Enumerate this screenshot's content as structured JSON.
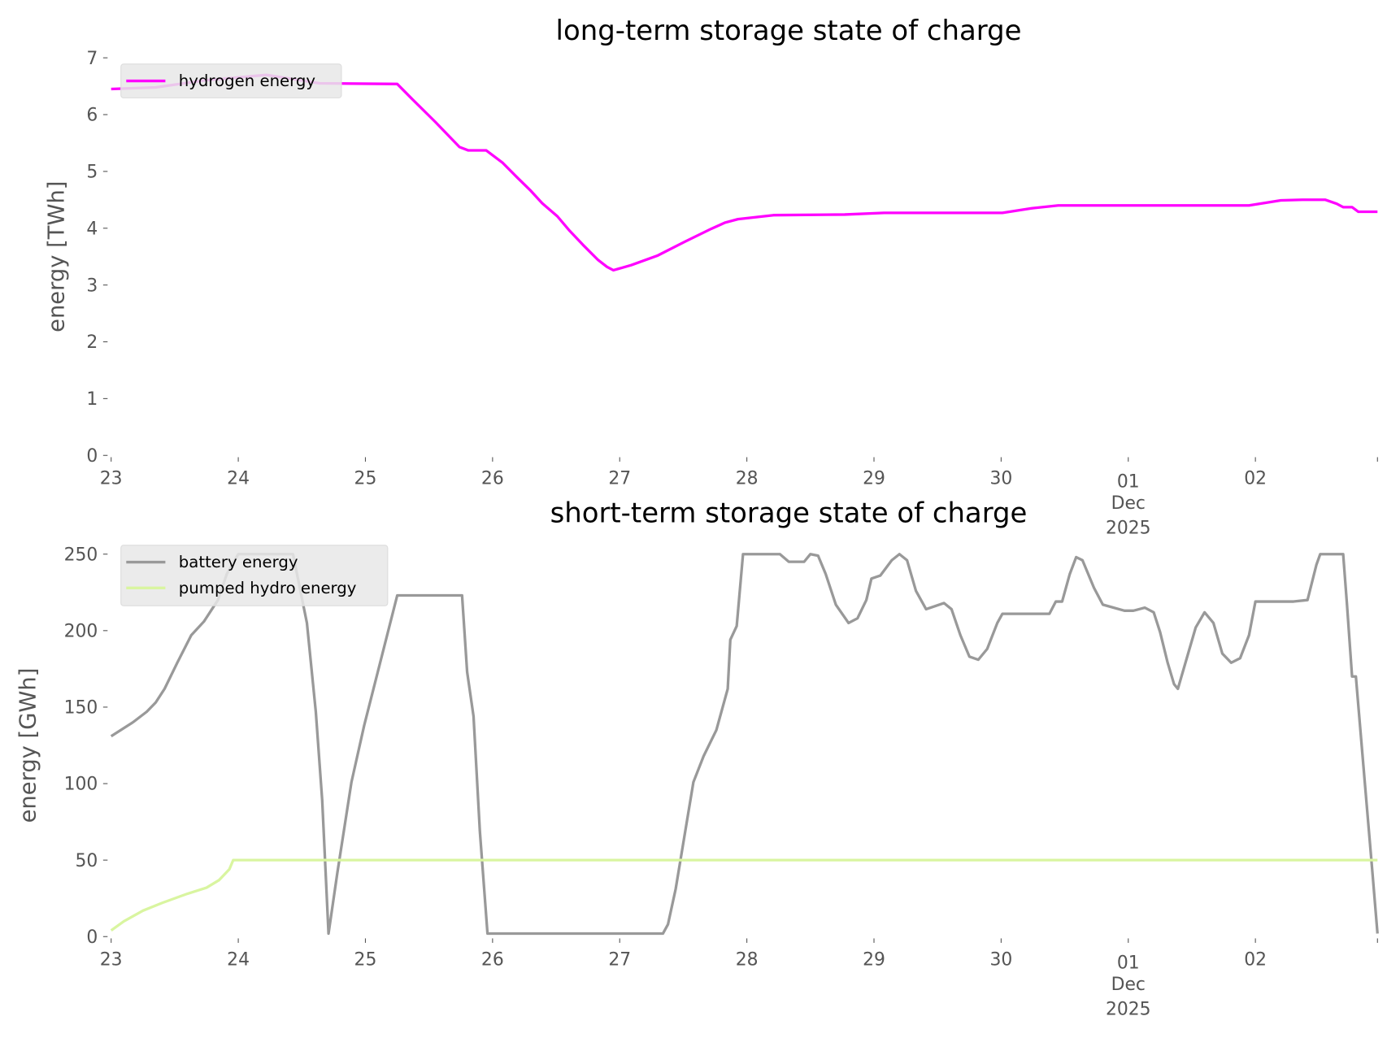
{
  "chart_data": [
    {
      "type": "line",
      "title": "long-term storage state of charge",
      "xlabel": "",
      "ylabel": "energy [TWh]",
      "x_unit": "days since 23 Nov 2025 00:00",
      "xlim": [
        0,
        9.96
      ],
      "ylim": [
        0,
        7
      ],
      "yticks": [
        0,
        1,
        2,
        3,
        4,
        5,
        6,
        7
      ],
      "xticks": [
        {
          "v": 0,
          "label": [
            "23"
          ]
        },
        {
          "v": 1,
          "label": [
            "24"
          ]
        },
        {
          "v": 2,
          "label": [
            "25"
          ]
        },
        {
          "v": 3,
          "label": [
            "26"
          ]
        },
        {
          "v": 4,
          "label": [
            "27"
          ]
        },
        {
          "v": 5,
          "label": [
            "28"
          ]
        },
        {
          "v": 6,
          "label": [
            "29"
          ]
        },
        {
          "v": 7,
          "label": [
            "30"
          ]
        },
        {
          "v": 8,
          "label": [
            "01",
            "Dec",
            "2025"
          ]
        },
        {
          "v": 9,
          "label": [
            "02"
          ]
        },
        {
          "v": 9.96,
          "label": []
        }
      ],
      "grid": false,
      "legend_position": "top-left",
      "series": [
        {
          "name": "hydrogen energy",
          "color": "#ff00ff",
          "x": [
            0,
            0.35,
            0.73,
            1.22,
            1.64,
            2.25,
            2.36,
            2.55,
            2.74,
            2.81,
            2.95,
            3.08,
            3.2,
            3.3,
            3.39,
            3.51,
            3.6,
            3.71,
            3.83,
            3.9,
            3.95,
            4.09,
            4.3,
            4.51,
            4.72,
            4.83,
            4.93,
            5.21,
            5.77,
            6.08,
            7.01,
            7.24,
            7.45,
            8.95,
            9.2,
            9.37,
            9.55,
            9.64,
            9.69,
            9.76,
            9.81,
            9.96
          ],
          "y": [
            6.45,
            6.48,
            6.6,
            6.7,
            6.55,
            6.54,
            6.29,
            5.87,
            5.43,
            5.37,
            5.37,
            5.15,
            4.88,
            4.66,
            4.44,
            4.21,
            3.97,
            3.71,
            3.44,
            3.32,
            3.26,
            3.35,
            3.52,
            3.76,
            3.99,
            4.1,
            4.16,
            4.23,
            4.24,
            4.27,
            4.27,
            4.35,
            4.4,
            4.4,
            4.49,
            4.5,
            4.5,
            4.43,
            4.37,
            4.37,
            4.29,
            4.29
          ]
        }
      ]
    },
    {
      "type": "line",
      "title": "short-term storage state of charge",
      "xlabel": "",
      "ylabel": "energy [GWh]",
      "x_unit": "days since 23 Nov 2025 00:00",
      "xlim": [
        0,
        9.96
      ],
      "ylim": [
        0,
        250
      ],
      "yticks": [
        0,
        50,
        100,
        150,
        200,
        250
      ],
      "xticks": [
        {
          "v": 0,
          "label": [
            "23"
          ]
        },
        {
          "v": 1,
          "label": [
            "24"
          ]
        },
        {
          "v": 2,
          "label": [
            "25"
          ]
        },
        {
          "v": 3,
          "label": [
            "26"
          ]
        },
        {
          "v": 4,
          "label": [
            "27"
          ]
        },
        {
          "v": 5,
          "label": [
            "28"
          ]
        },
        {
          "v": 6,
          "label": [
            "29"
          ]
        },
        {
          "v": 7,
          "label": [
            "30"
          ]
        },
        {
          "v": 8,
          "label": [
            "01",
            "Dec",
            "2025"
          ]
        },
        {
          "v": 9,
          "label": [
            "02"
          ]
        },
        {
          "v": 9.96,
          "label": []
        }
      ],
      "grid": false,
      "legend_position": "top-left",
      "series": [
        {
          "name": "battery energy",
          "color": "#999999",
          "x": [
            0,
            0.17,
            0.28,
            0.35,
            0.42,
            0.52,
            0.63,
            0.73,
            0.84,
            0.91,
            1.0,
            1.43,
            1.54,
            1.61,
            1.66,
            1.71,
            1.78,
            1.89,
            1.99,
            2.25,
            2.76,
            2.8,
            2.85,
            2.9,
            2.96,
            4.34,
            4.38,
            4.44,
            4.51,
            4.58,
            4.66,
            4.76,
            4.85,
            4.87,
            4.92,
            4.97,
            5.26,
            5.33,
            5.45,
            5.5,
            5.56,
            5.62,
            5.7,
            5.8,
            5.87,
            5.94,
            5.98,
            6.05,
            6.14,
            6.2,
            6.26,
            6.33,
            6.41,
            6.55,
            6.61,
            6.68,
            6.75,
            6.82,
            6.89,
            6.97,
            7.01,
            7.38,
            7.43,
            7.48,
            7.54,
            7.59,
            7.64,
            7.73,
            7.8,
            7.97,
            8.04,
            8.13,
            8.2,
            8.25,
            8.31,
            8.36,
            8.39,
            8.46,
            8.53,
            8.6,
            8.67,
            8.74,
            8.81,
            8.88,
            8.95,
            9.0,
            9.3,
            9.41,
            9.48,
            9.51,
            9.69,
            9.72,
            9.76,
            9.79,
            9.86,
            9.92,
            9.96
          ],
          "y": [
            131,
            140,
            147,
            153,
            162,
            179,
            197,
            206,
            220,
            237,
            250,
            250,
            205,
            147,
            89,
            2,
            42,
            101,
            138,
            223,
            223,
            173,
            144,
            69,
            2,
            2,
            8,
            31,
            66,
            101,
            118,
            135,
            162,
            194,
            203,
            250,
            250,
            245,
            245,
            250,
            249,
            237,
            217,
            205,
            208,
            220,
            234,
            236,
            246,
            250,
            246,
            226,
            214,
            218,
            214,
            197,
            183,
            181,
            188,
            205,
            211,
            211,
            219,
            219,
            237,
            248,
            246,
            228,
            217,
            213,
            213,
            215,
            212,
            199,
            179,
            165,
            162,
            182,
            202,
            212,
            205,
            185,
            179,
            182,
            197,
            219,
            219,
            220,
            243,
            250,
            250,
            217,
            170,
            170,
            101,
            42,
            2
          ]
        },
        {
          "name": "pumped hydro energy",
          "color": "#d9f5a0",
          "x": [
            0,
            0.1,
            0.25,
            0.4,
            0.6,
            0.75,
            0.85,
            0.93,
            0.96,
            9.96
          ],
          "y": [
            4,
            10,
            17,
            22,
            28,
            32,
            37,
            44,
            50,
            50
          ]
        }
      ]
    }
  ]
}
